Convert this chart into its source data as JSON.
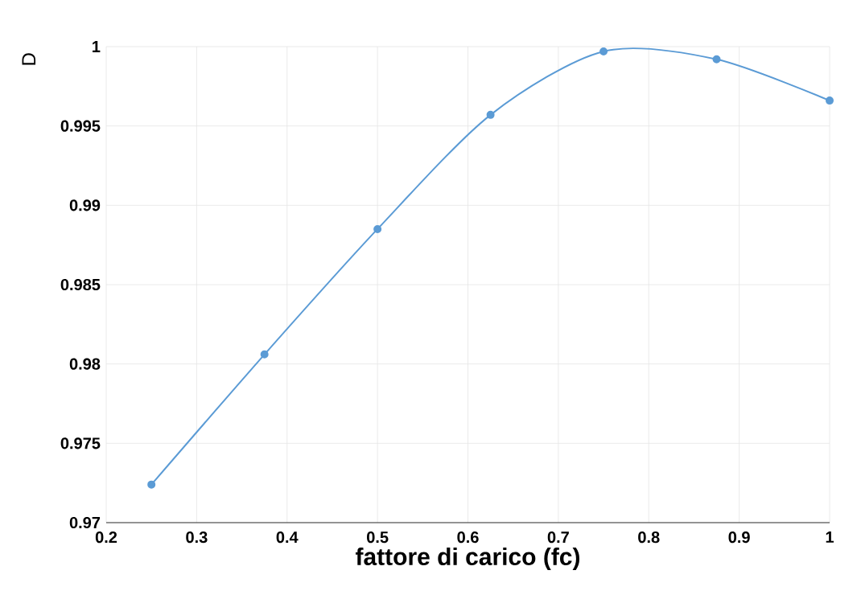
{
  "chart_data": {
    "type": "line",
    "xlabel": "fattore di carico (fc)",
    "ylabel": "D",
    "x": [
      0.25,
      0.375,
      0.5,
      0.625,
      0.75,
      0.875,
      1
    ],
    "series": [
      {
        "color": "#5b9bd5",
        "values": [
          0.9724,
          0.9806,
          0.9885,
          0.9957,
          0.9997,
          0.9992,
          0.9966
        ]
      }
    ],
    "xlim": [
      0.2,
      1
    ],
    "xticks": [
      0.2,
      0.3,
      0.4,
      0.5,
      0.6,
      0.7,
      0.8,
      0.9,
      1
    ],
    "ylim": [
      0.97,
      1
    ],
    "yticks": [
      0.97,
      0.975,
      0.98,
      0.985,
      0.99,
      0.995,
      1
    ],
    "grid": true,
    "marker": "circle",
    "line_style": "solid"
  }
}
